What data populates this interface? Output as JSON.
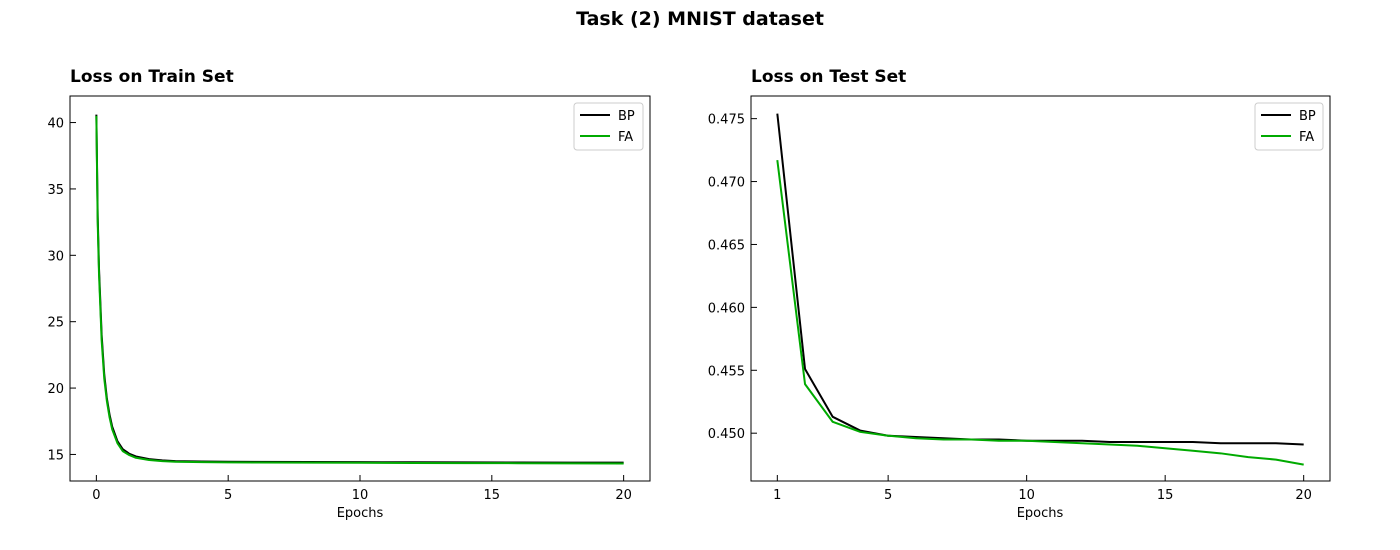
{
  "figure": {
    "suptitle": "Task (2) MNIST dataset"
  },
  "chart_data": [
    {
      "type": "line",
      "title": "Loss on Train Set",
      "xlabel": "Epochs",
      "ylabel": "",
      "xlim": [
        -1,
        21
      ],
      "ylim": [
        13,
        42
      ],
      "xticks": [
        0,
        5,
        10,
        15,
        20
      ],
      "yticks": [
        15,
        20,
        25,
        30,
        35,
        40
      ],
      "legend": "top-right",
      "grid": false,
      "series": [
        {
          "name": "BP",
          "color": "#000000",
          "x": [
            0,
            0.05,
            0.1,
            0.2,
            0.3,
            0.4,
            0.5,
            0.6,
            0.8,
            1.0,
            1.25,
            1.5,
            2,
            2.5,
            3,
            4,
            5,
            6,
            8,
            10,
            12,
            14,
            16,
            18,
            20
          ],
          "y": [
            40.6,
            33.0,
            29.0,
            24.0,
            21.0,
            19.2,
            18.0,
            17.1,
            16.0,
            15.4,
            15.05,
            14.85,
            14.65,
            14.55,
            14.5,
            14.47,
            14.45,
            14.44,
            14.43,
            14.42,
            14.41,
            14.4,
            14.39,
            14.38,
            14.38
          ]
        },
        {
          "name": "FA",
          "color": "#00aa00",
          "x": [
            0,
            0.05,
            0.1,
            0.2,
            0.3,
            0.4,
            0.5,
            0.6,
            0.8,
            1.0,
            1.25,
            1.5,
            2,
            2.5,
            3,
            4,
            5,
            6,
            8,
            10,
            12,
            14,
            16,
            18,
            20
          ],
          "y": [
            40.5,
            32.5,
            28.6,
            23.6,
            20.7,
            19.0,
            17.8,
            16.9,
            15.85,
            15.25,
            14.95,
            14.75,
            14.58,
            14.5,
            14.45,
            14.42,
            14.4,
            14.39,
            14.38,
            14.37,
            14.36,
            14.35,
            14.34,
            14.33,
            14.32
          ]
        }
      ]
    },
    {
      "type": "line",
      "title": "Loss on Test Set",
      "xlabel": "Epochs",
      "ylabel": "",
      "xlim": [
        0.05,
        20.95
      ],
      "ylim": [
        0.4462,
        0.4768
      ],
      "xticks": [
        1,
        5,
        10,
        15,
        20
      ],
      "yticks": [
        0.45,
        0.455,
        0.46,
        0.465,
        0.47,
        0.475
      ],
      "legend": "top-right",
      "grid": false,
      "series": [
        {
          "name": "BP",
          "color": "#000000",
          "x": [
            1,
            2,
            3,
            4,
            5,
            6,
            7,
            8,
            9,
            10,
            11,
            12,
            13,
            14,
            15,
            16,
            17,
            18,
            19,
            20
          ],
          "y": [
            0.4754,
            0.4551,
            0.4513,
            0.4502,
            0.4498,
            0.4497,
            0.4496,
            0.4495,
            0.4495,
            0.4494,
            0.4494,
            0.4494,
            0.4493,
            0.4493,
            0.4493,
            0.4493,
            0.4492,
            0.4492,
            0.4492,
            0.4491
          ]
        },
        {
          "name": "FA",
          "color": "#00aa00",
          "x": [
            1,
            2,
            3,
            4,
            5,
            6,
            7,
            8,
            9,
            10,
            11,
            12,
            13,
            14,
            15,
            16,
            17,
            18,
            19,
            20
          ],
          "y": [
            0.4717,
            0.4539,
            0.4509,
            0.4501,
            0.4498,
            0.4496,
            0.4495,
            0.4495,
            0.4494,
            0.4494,
            0.4493,
            0.4492,
            0.4491,
            0.449,
            0.4488,
            0.4486,
            0.4484,
            0.4481,
            0.4479,
            0.4475
          ]
        }
      ]
    }
  ]
}
